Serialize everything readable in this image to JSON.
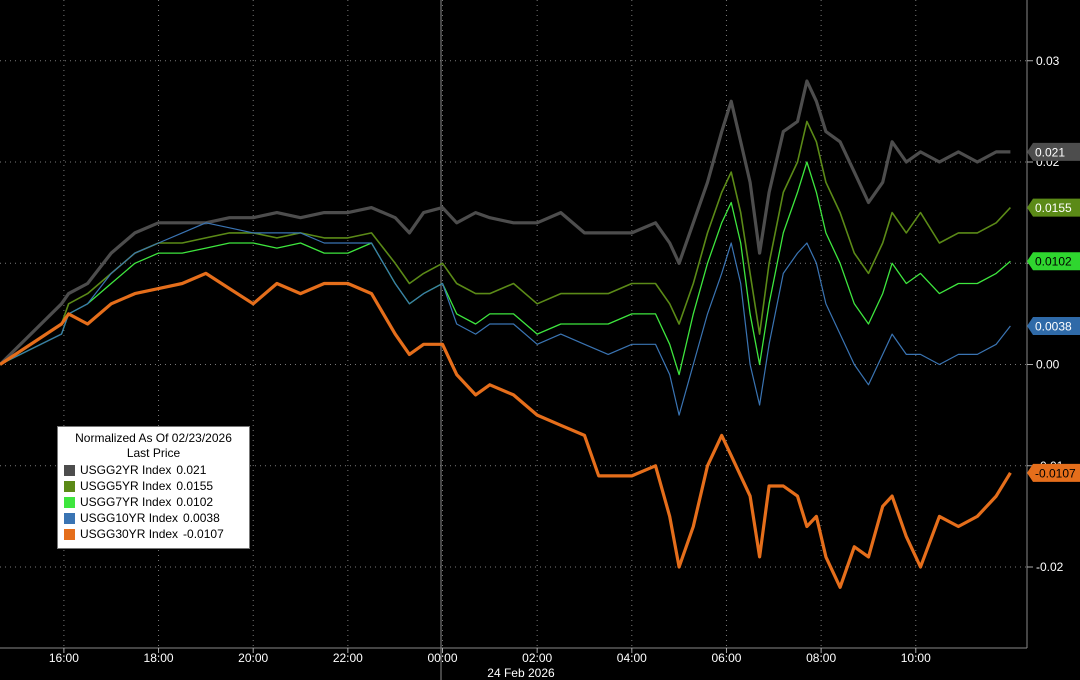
{
  "chart_data": {
    "type": "line",
    "title": "Normalized As Of 02/23/2026",
    "subtitle": "Last Price",
    "date_label": "24 Feb 2026",
    "x_ticks": [
      "16:00",
      "18:00",
      "20:00",
      "22:00",
      "00:00",
      "02:00",
      "04:00",
      "06:00",
      "08:00",
      "10:00"
    ],
    "y_ticks": [
      {
        "value": 0.03,
        "label": "0.03"
      },
      {
        "value": 0.02,
        "label": "0.02"
      },
      {
        "value": 0.01,
        "label": "0.01"
      },
      {
        "value": 0.0,
        "label": "0.00"
      },
      {
        "value": -0.01,
        "label": "-0.01"
      },
      {
        "value": -0.02,
        "label": "-0.02"
      }
    ],
    "ylim": [
      -0.028,
      0.036
    ],
    "xlim": [
      14.65,
      36.35
    ],
    "grid": true,
    "legend_position": "bottom-left",
    "series": [
      {
        "name": "USGG2YR Index",
        "last": "0.021",
        "color": "#4d4d4d",
        "points": [
          [
            14.65,
            0
          ],
          [
            15.95,
            0.006
          ],
          [
            16.1,
            0.007
          ],
          [
            16.5,
            0.008
          ],
          [
            17.0,
            0.011
          ],
          [
            17.5,
            0.013
          ],
          [
            18.0,
            0.014
          ],
          [
            18.5,
            0.014
          ],
          [
            19.0,
            0.014
          ],
          [
            19.5,
            0.0145
          ],
          [
            20.0,
            0.0145
          ],
          [
            20.5,
            0.015
          ],
          [
            21.0,
            0.0145
          ],
          [
            21.5,
            0.015
          ],
          [
            22.0,
            0.015
          ],
          [
            22.5,
            0.0155
          ],
          [
            23.0,
            0.0145
          ],
          [
            23.3,
            0.013
          ],
          [
            23.6,
            0.015
          ],
          [
            24.0,
            0.0155
          ],
          [
            24.3,
            0.014
          ],
          [
            24.7,
            0.015
          ],
          [
            25.0,
            0.0145
          ],
          [
            25.5,
            0.014
          ],
          [
            26.0,
            0.014
          ],
          [
            26.5,
            0.015
          ],
          [
            27.0,
            0.013
          ],
          [
            27.5,
            0.013
          ],
          [
            28.0,
            0.013
          ],
          [
            28.5,
            0.014
          ],
          [
            28.8,
            0.012
          ],
          [
            29.0,
            0.01
          ],
          [
            29.3,
            0.014
          ],
          [
            29.6,
            0.018
          ],
          [
            29.9,
            0.023
          ],
          [
            30.1,
            0.026
          ],
          [
            30.3,
            0.022
          ],
          [
            30.5,
            0.018
          ],
          [
            30.7,
            0.011
          ],
          [
            30.9,
            0.017
          ],
          [
            31.2,
            0.023
          ],
          [
            31.5,
            0.024
          ],
          [
            31.7,
            0.028
          ],
          [
            31.9,
            0.026
          ],
          [
            32.1,
            0.023
          ],
          [
            32.4,
            0.022
          ],
          [
            32.7,
            0.019
          ],
          [
            33.0,
            0.016
          ],
          [
            33.3,
            0.018
          ],
          [
            33.5,
            0.022
          ],
          [
            33.8,
            0.02
          ],
          [
            34.1,
            0.021
          ],
          [
            34.5,
            0.02
          ],
          [
            34.9,
            0.021
          ],
          [
            35.3,
            0.02
          ],
          [
            35.7,
            0.021
          ],
          [
            36.0,
            0.021
          ]
        ]
      },
      {
        "name": "USGG5YR Index",
        "last": "0.0155",
        "color": "#5b8a17",
        "points": [
          [
            14.65,
            0
          ],
          [
            15.95,
            0.004
          ],
          [
            16.1,
            0.006
          ],
          [
            16.5,
            0.007
          ],
          [
            17.0,
            0.009
          ],
          [
            17.5,
            0.011
          ],
          [
            18.0,
            0.012
          ],
          [
            18.5,
            0.012
          ],
          [
            19.0,
            0.0125
          ],
          [
            19.5,
            0.013
          ],
          [
            20.0,
            0.013
          ],
          [
            20.5,
            0.0125
          ],
          [
            21.0,
            0.013
          ],
          [
            21.5,
            0.0125
          ],
          [
            22.0,
            0.0125
          ],
          [
            22.5,
            0.013
          ],
          [
            23.0,
            0.01
          ],
          [
            23.3,
            0.008
          ],
          [
            23.6,
            0.009
          ],
          [
            24.0,
            0.01
          ],
          [
            24.3,
            0.008
          ],
          [
            24.7,
            0.007
          ],
          [
            25.0,
            0.007
          ],
          [
            25.5,
            0.008
          ],
          [
            26.0,
            0.006
          ],
          [
            26.5,
            0.007
          ],
          [
            27.0,
            0.007
          ],
          [
            27.5,
            0.007
          ],
          [
            28.0,
            0.008
          ],
          [
            28.5,
            0.008
          ],
          [
            28.8,
            0.006
          ],
          [
            29.0,
            0.004
          ],
          [
            29.3,
            0.008
          ],
          [
            29.6,
            0.013
          ],
          [
            29.9,
            0.017
          ],
          [
            30.1,
            0.019
          ],
          [
            30.3,
            0.015
          ],
          [
            30.5,
            0.009
          ],
          [
            30.7,
            0.003
          ],
          [
            30.9,
            0.01
          ],
          [
            31.2,
            0.017
          ],
          [
            31.5,
            0.02
          ],
          [
            31.7,
            0.024
          ],
          [
            31.9,
            0.022
          ],
          [
            32.1,
            0.018
          ],
          [
            32.4,
            0.015
          ],
          [
            32.7,
            0.011
          ],
          [
            33.0,
            0.009
          ],
          [
            33.3,
            0.012
          ],
          [
            33.5,
            0.015
          ],
          [
            33.8,
            0.013
          ],
          [
            34.1,
            0.015
          ],
          [
            34.5,
            0.012
          ],
          [
            34.9,
            0.013
          ],
          [
            35.3,
            0.013
          ],
          [
            35.7,
            0.014
          ],
          [
            36.0,
            0.0155
          ]
        ]
      },
      {
        "name": "USGG7YR Index",
        "last": "0.0102",
        "color": "#3ee63e",
        "points": [
          [
            14.65,
            0
          ],
          [
            15.95,
            0.003
          ],
          [
            16.1,
            0.005
          ],
          [
            16.5,
            0.006
          ],
          [
            17.0,
            0.008
          ],
          [
            17.5,
            0.01
          ],
          [
            18.0,
            0.011
          ],
          [
            18.5,
            0.011
          ],
          [
            19.0,
            0.0115
          ],
          [
            19.5,
            0.012
          ],
          [
            20.0,
            0.012
          ],
          [
            20.5,
            0.0115
          ],
          [
            21.0,
            0.012
          ],
          [
            21.5,
            0.011
          ],
          [
            22.0,
            0.011
          ],
          [
            22.5,
            0.012
          ],
          [
            23.0,
            0.008
          ],
          [
            23.3,
            0.006
          ],
          [
            23.6,
            0.007
          ],
          [
            24.0,
            0.008
          ],
          [
            24.3,
            0.005
          ],
          [
            24.7,
            0.004
          ],
          [
            25.0,
            0.005
          ],
          [
            25.5,
            0.005
          ],
          [
            26.0,
            0.003
          ],
          [
            26.5,
            0.004
          ],
          [
            27.0,
            0.004
          ],
          [
            27.5,
            0.004
          ],
          [
            28.0,
            0.005
          ],
          [
            28.5,
            0.005
          ],
          [
            28.8,
            0.002
          ],
          [
            29.0,
            -0.001
          ],
          [
            29.3,
            0.005
          ],
          [
            29.6,
            0.01
          ],
          [
            29.9,
            0.014
          ],
          [
            30.1,
            0.016
          ],
          [
            30.3,
            0.012
          ],
          [
            30.5,
            0.005
          ],
          [
            30.7,
            0.0
          ],
          [
            30.9,
            0.006
          ],
          [
            31.2,
            0.013
          ],
          [
            31.5,
            0.017
          ],
          [
            31.7,
            0.02
          ],
          [
            31.9,
            0.017
          ],
          [
            32.1,
            0.013
          ],
          [
            32.4,
            0.01
          ],
          [
            32.7,
            0.006
          ],
          [
            33.0,
            0.004
          ],
          [
            33.3,
            0.007
          ],
          [
            33.5,
            0.01
          ],
          [
            33.8,
            0.008
          ],
          [
            34.1,
            0.009
          ],
          [
            34.5,
            0.007
          ],
          [
            34.9,
            0.008
          ],
          [
            35.3,
            0.008
          ],
          [
            35.7,
            0.009
          ],
          [
            36.0,
            0.0102
          ]
        ]
      },
      {
        "name": "USGG10YR Index",
        "last": "0.0038",
        "color": "#3a74b3",
        "points": [
          [
            14.65,
            0
          ],
          [
            15.95,
            0.003
          ],
          [
            16.1,
            0.005
          ],
          [
            16.5,
            0.006
          ],
          [
            17.0,
            0.009
          ],
          [
            17.5,
            0.011
          ],
          [
            18.0,
            0.012
          ],
          [
            18.5,
            0.013
          ],
          [
            19.0,
            0.014
          ],
          [
            19.5,
            0.0135
          ],
          [
            20.0,
            0.013
          ],
          [
            20.5,
            0.013
          ],
          [
            21.0,
            0.013
          ],
          [
            21.5,
            0.012
          ],
          [
            22.0,
            0.012
          ],
          [
            22.5,
            0.012
          ],
          [
            23.0,
            0.008
          ],
          [
            23.3,
            0.006
          ],
          [
            23.6,
            0.007
          ],
          [
            24.0,
            0.008
          ],
          [
            24.3,
            0.004
          ],
          [
            24.7,
            0.003
          ],
          [
            25.0,
            0.004
          ],
          [
            25.5,
            0.004
          ],
          [
            26.0,
            0.002
          ],
          [
            26.5,
            0.003
          ],
          [
            27.0,
            0.002
          ],
          [
            27.5,
            0.001
          ],
          [
            28.0,
            0.002
          ],
          [
            28.5,
            0.002
          ],
          [
            28.8,
            -0.001
          ],
          [
            29.0,
            -0.005
          ],
          [
            29.3,
            0.0
          ],
          [
            29.6,
            0.005
          ],
          [
            29.9,
            0.009
          ],
          [
            30.1,
            0.012
          ],
          [
            30.3,
            0.008
          ],
          [
            30.5,
            0.0
          ],
          [
            30.7,
            -0.004
          ],
          [
            30.9,
            0.002
          ],
          [
            31.2,
            0.009
          ],
          [
            31.5,
            0.011
          ],
          [
            31.7,
            0.012
          ],
          [
            31.9,
            0.01
          ],
          [
            32.1,
            0.006
          ],
          [
            32.4,
            0.003
          ],
          [
            32.7,
            0.0
          ],
          [
            33.0,
            -0.002
          ],
          [
            33.3,
            0.001
          ],
          [
            33.5,
            0.003
          ],
          [
            33.8,
            0.001
          ],
          [
            34.1,
            0.001
          ],
          [
            34.5,
            0.0
          ],
          [
            34.9,
            0.001
          ],
          [
            35.3,
            0.001
          ],
          [
            35.7,
            0.002
          ],
          [
            36.0,
            0.0038
          ]
        ]
      },
      {
        "name": "USGG30YR Index",
        "last": "-0.0107",
        "color": "#e56e1b",
        "points": [
          [
            14.65,
            0
          ],
          [
            15.95,
            0.004
          ],
          [
            16.1,
            0.005
          ],
          [
            16.5,
            0.004
          ],
          [
            17.0,
            0.006
          ],
          [
            17.5,
            0.007
          ],
          [
            18.0,
            0.0075
          ],
          [
            18.5,
            0.008
          ],
          [
            19.0,
            0.009
          ],
          [
            19.5,
            0.0075
          ],
          [
            20.0,
            0.006
          ],
          [
            20.5,
            0.008
          ],
          [
            21.0,
            0.007
          ],
          [
            21.5,
            0.008
          ],
          [
            22.0,
            0.008
          ],
          [
            22.5,
            0.007
          ],
          [
            23.0,
            0.003
          ],
          [
            23.3,
            0.001
          ],
          [
            23.6,
            0.002
          ],
          [
            24.0,
            0.002
          ],
          [
            24.3,
            -0.001
          ],
          [
            24.7,
            -0.003
          ],
          [
            25.0,
            -0.002
          ],
          [
            25.5,
            -0.003
          ],
          [
            26.0,
            -0.005
          ],
          [
            26.5,
            -0.006
          ],
          [
            27.0,
            -0.007
          ],
          [
            27.3,
            -0.011
          ],
          [
            27.6,
            -0.011
          ],
          [
            28.0,
            -0.011
          ],
          [
            28.5,
            -0.01
          ],
          [
            28.8,
            -0.015
          ],
          [
            29.0,
            -0.02
          ],
          [
            29.3,
            -0.016
          ],
          [
            29.6,
            -0.01
          ],
          [
            29.9,
            -0.007
          ],
          [
            30.1,
            -0.009
          ],
          [
            30.3,
            -0.011
          ],
          [
            30.5,
            -0.013
          ],
          [
            30.7,
            -0.019
          ],
          [
            30.9,
            -0.012
          ],
          [
            31.2,
            -0.012
          ],
          [
            31.5,
            -0.013
          ],
          [
            31.7,
            -0.016
          ],
          [
            31.9,
            -0.015
          ],
          [
            32.1,
            -0.019
          ],
          [
            32.4,
            -0.022
          ],
          [
            32.7,
            -0.018
          ],
          [
            33.0,
            -0.019
          ],
          [
            33.3,
            -0.014
          ],
          [
            33.5,
            -0.013
          ],
          [
            33.8,
            -0.017
          ],
          [
            34.1,
            -0.02
          ],
          [
            34.5,
            -0.015
          ],
          [
            34.9,
            -0.016
          ],
          [
            35.3,
            -0.015
          ],
          [
            35.7,
            -0.013
          ],
          [
            36.0,
            -0.0107
          ]
        ]
      }
    ]
  }
}
